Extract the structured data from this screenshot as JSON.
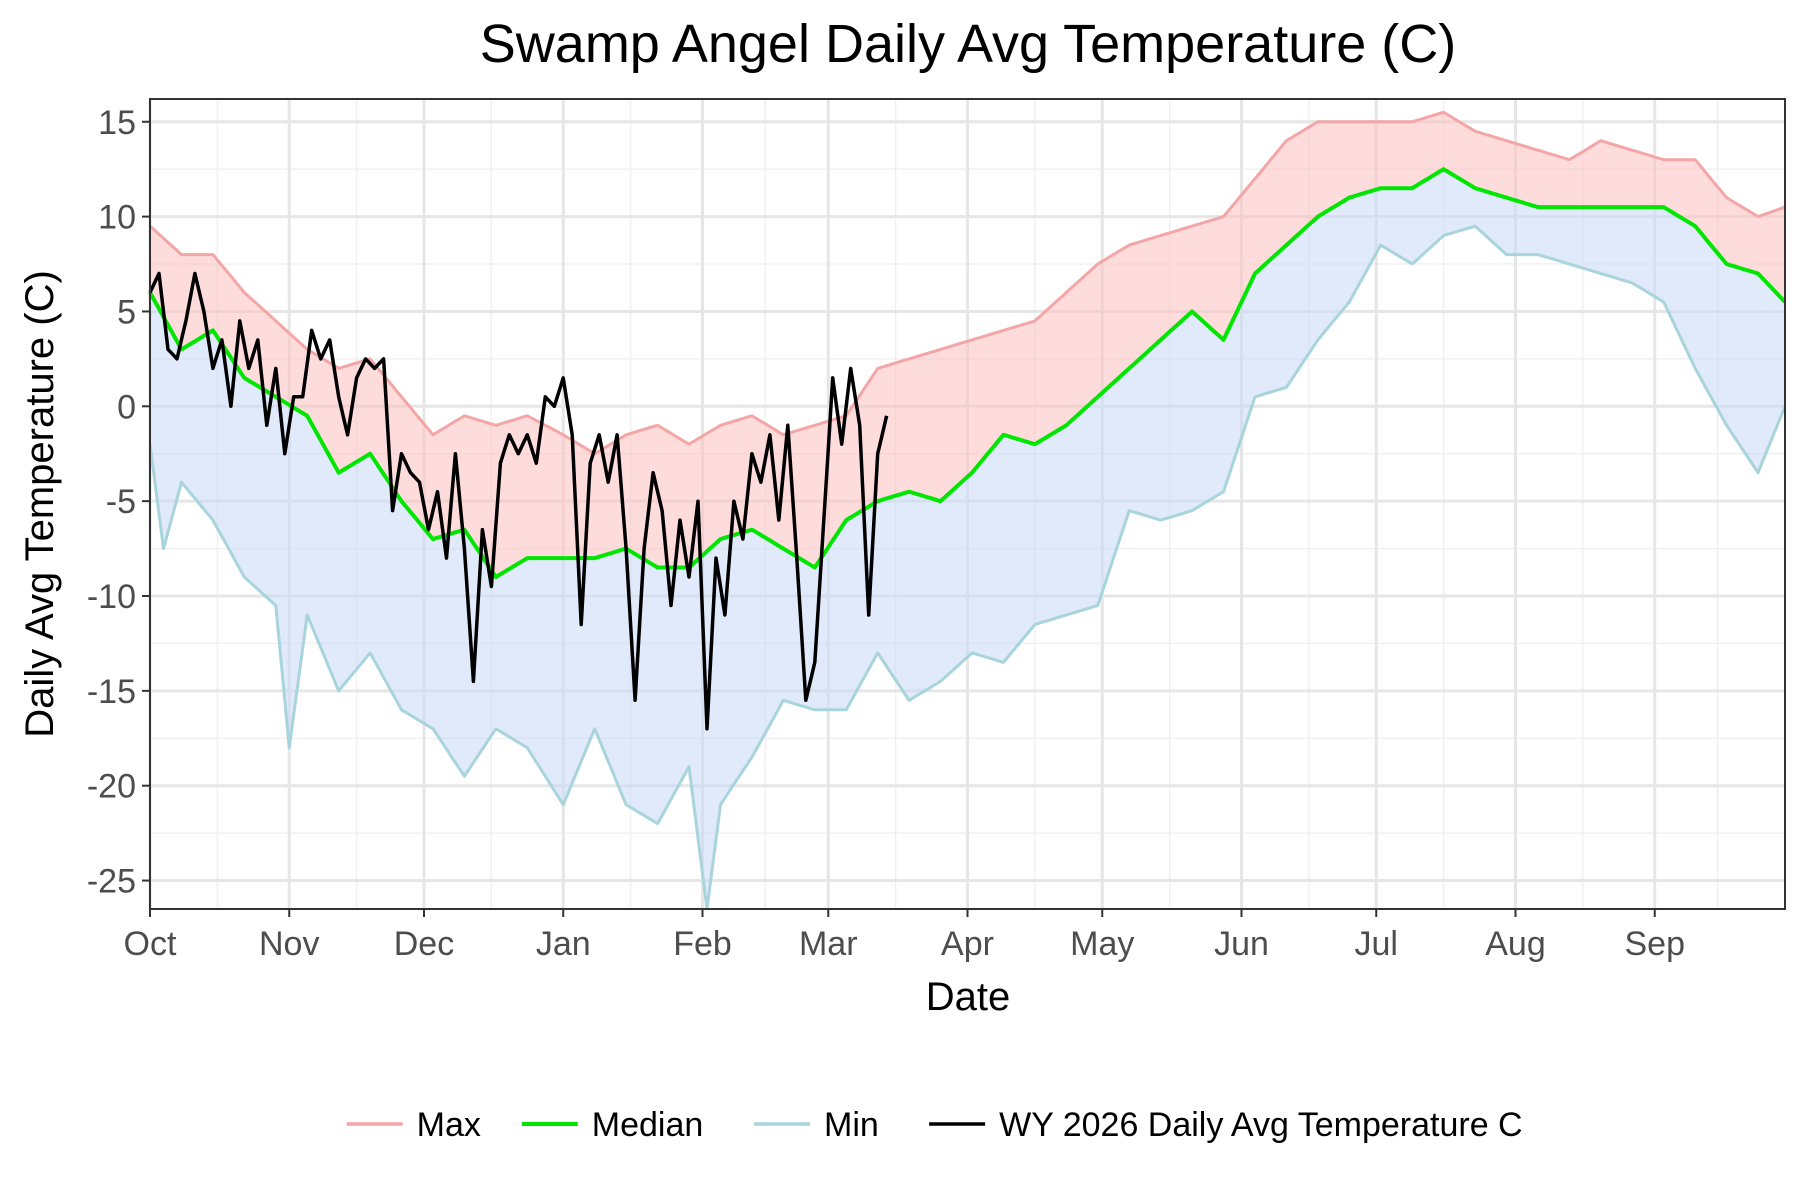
{
  "chart_data": {
    "type": "line",
    "title": "Swamp Angel Daily Avg Temperature (C)",
    "xlabel": "Date",
    "ylabel": "Daily Avg Temperature (C)",
    "x_axis": {
      "type": "date",
      "range": [
        "2025-10-01",
        "2026-09-30"
      ],
      "ticks": [
        {
          "date": "2025-10-01",
          "label": "Oct"
        },
        {
          "date": "2025-11-01",
          "label": "Nov"
        },
        {
          "date": "2025-12-01",
          "label": "Dec"
        },
        {
          "date": "2026-01-01",
          "label": "Jan"
        },
        {
          "date": "2026-02-01",
          "label": "Feb"
        },
        {
          "date": "2026-03-01",
          "label": "Mar"
        },
        {
          "date": "2026-04-01",
          "label": "Apr"
        },
        {
          "date": "2026-05-01",
          "label": "May"
        },
        {
          "date": "2026-06-01",
          "label": "Jun"
        },
        {
          "date": "2026-07-01",
          "label": "Jul"
        },
        {
          "date": "2026-08-01",
          "label": "Aug"
        },
        {
          "date": "2026-09-01",
          "label": "Sep"
        }
      ]
    },
    "ylim": [
      -26.5,
      16.2
    ],
    "y_ticks": [
      {
        "value": 15,
        "label": "15"
      },
      {
        "value": 10,
        "label": "10"
      },
      {
        "value": 5,
        "label": "5"
      },
      {
        "value": 0,
        "label": "0"
      },
      {
        "value": -5,
        "label": "-5"
      },
      {
        "value": -10,
        "label": "-10"
      },
      {
        "value": -15,
        "label": "-15"
      },
      {
        "value": -20,
        "label": "-20"
      },
      {
        "value": -25,
        "label": "-25"
      }
    ],
    "grid": true,
    "legend_position": "bottom",
    "bands": [
      {
        "between": [
          "Max",
          "Median"
        ],
        "color": "#ffc0c0",
        "description": "shaded band from max to median"
      },
      {
        "between": [
          "Median",
          "Min"
        ],
        "color": "#c8d8f8",
        "description": "shaded band from median to min"
      }
    ],
    "series": [
      {
        "name": "Max",
        "color": "#f4a6a6",
        "points": [
          [
            "2025-10-01",
            9.5
          ],
          [
            "2025-10-08",
            8.0
          ],
          [
            "2025-10-15",
            8.0
          ],
          [
            "2025-10-22",
            6.0
          ],
          [
            "2025-10-29",
            4.5
          ],
          [
            "2025-11-05",
            3.0
          ],
          [
            "2025-11-12",
            2.0
          ],
          [
            "2025-11-19",
            2.5
          ],
          [
            "2025-11-26",
            0.5
          ],
          [
            "2025-12-03",
            -1.5
          ],
          [
            "2025-12-10",
            -0.5
          ],
          [
            "2025-12-17",
            -1.0
          ],
          [
            "2025-12-24",
            -0.5
          ],
          [
            "2026-01-01",
            -1.5
          ],
          [
            "2026-01-08",
            -2.5
          ],
          [
            "2026-01-15",
            -1.5
          ],
          [
            "2026-01-22",
            -1.0
          ],
          [
            "2026-01-29",
            -2.0
          ],
          [
            "2026-02-05",
            -1.0
          ],
          [
            "2026-02-12",
            -0.5
          ],
          [
            "2026-02-19",
            -1.5
          ],
          [
            "2026-02-26",
            -1.0
          ],
          [
            "2026-03-05",
            -0.5
          ],
          [
            "2026-03-12",
            2.0
          ],
          [
            "2026-03-19",
            2.5
          ],
          [
            "2026-03-26",
            3.0
          ],
          [
            "2026-04-02",
            3.5
          ],
          [
            "2026-04-09",
            4.0
          ],
          [
            "2026-04-16",
            4.5
          ],
          [
            "2026-04-23",
            6.0
          ],
          [
            "2026-04-30",
            7.5
          ],
          [
            "2026-05-07",
            8.5
          ],
          [
            "2026-05-14",
            9.0
          ],
          [
            "2026-05-21",
            9.5
          ],
          [
            "2026-05-28",
            10.0
          ],
          [
            "2026-06-04",
            12.0
          ],
          [
            "2026-06-11",
            14.0
          ],
          [
            "2026-06-18",
            15.0
          ],
          [
            "2026-06-25",
            15.0
          ],
          [
            "2026-07-02",
            15.0
          ],
          [
            "2026-07-09",
            15.0
          ],
          [
            "2026-07-16",
            15.5
          ],
          [
            "2026-07-23",
            14.5
          ],
          [
            "2026-07-30",
            14.0
          ],
          [
            "2026-08-06",
            13.5
          ],
          [
            "2026-08-13",
            13.0
          ],
          [
            "2026-08-20",
            14.0
          ],
          [
            "2026-08-27",
            13.5
          ],
          [
            "2026-09-03",
            13.0
          ],
          [
            "2026-09-10",
            13.0
          ],
          [
            "2026-09-17",
            11.0
          ],
          [
            "2026-09-24",
            10.0
          ],
          [
            "2026-09-30",
            10.5
          ]
        ]
      },
      {
        "name": "Median",
        "color": "#00e600",
        "points": [
          [
            "2025-10-01",
            6.0
          ],
          [
            "2025-10-08",
            3.0
          ],
          [
            "2025-10-15",
            4.0
          ],
          [
            "2025-10-22",
            1.5
          ],
          [
            "2025-10-29",
            0.5
          ],
          [
            "2025-11-05",
            -0.5
          ],
          [
            "2025-11-12",
            -3.5
          ],
          [
            "2025-11-19",
            -2.5
          ],
          [
            "2025-11-26",
            -5.0
          ],
          [
            "2025-12-03",
            -7.0
          ],
          [
            "2025-12-10",
            -6.5
          ],
          [
            "2025-12-17",
            -9.0
          ],
          [
            "2025-12-24",
            -8.0
          ],
          [
            "2026-01-01",
            -8.0
          ],
          [
            "2026-01-08",
            -8.0
          ],
          [
            "2026-01-15",
            -7.5
          ],
          [
            "2026-01-22",
            -8.5
          ],
          [
            "2026-01-29",
            -8.5
          ],
          [
            "2026-02-05",
            -7.0
          ],
          [
            "2026-02-12",
            -6.5
          ],
          [
            "2026-02-19",
            -7.5
          ],
          [
            "2026-02-26",
            -8.5
          ],
          [
            "2026-03-05",
            -6.0
          ],
          [
            "2026-03-12",
            -5.0
          ],
          [
            "2026-03-19",
            -4.5
          ],
          [
            "2026-03-26",
            -5.0
          ],
          [
            "2026-04-02",
            -3.5
          ],
          [
            "2026-04-09",
            -1.5
          ],
          [
            "2026-04-16",
            -2.0
          ],
          [
            "2026-04-23",
            -1.0
          ],
          [
            "2026-04-30",
            0.5
          ],
          [
            "2026-05-07",
            2.0
          ],
          [
            "2026-05-14",
            3.5
          ],
          [
            "2026-05-21",
            5.0
          ],
          [
            "2026-05-28",
            3.5
          ],
          [
            "2026-06-04",
            7.0
          ],
          [
            "2026-06-11",
            8.5
          ],
          [
            "2026-06-18",
            10.0
          ],
          [
            "2026-06-25",
            11.0
          ],
          [
            "2026-07-02",
            11.5
          ],
          [
            "2026-07-09",
            11.5
          ],
          [
            "2026-07-16",
            12.5
          ],
          [
            "2026-07-23",
            11.5
          ],
          [
            "2026-07-30",
            11.0
          ],
          [
            "2026-08-06",
            10.5
          ],
          [
            "2026-08-13",
            10.5
          ],
          [
            "2026-08-20",
            10.5
          ],
          [
            "2026-08-27",
            10.5
          ],
          [
            "2026-09-03",
            10.5
          ],
          [
            "2026-09-10",
            9.5
          ],
          [
            "2026-09-17",
            7.5
          ],
          [
            "2026-09-24",
            7.0
          ],
          [
            "2026-09-30",
            5.5
          ]
        ]
      },
      {
        "name": "Min",
        "color": "#a8d4dc",
        "points": [
          [
            "2025-10-01",
            -2.0
          ],
          [
            "2025-10-04",
            -7.5
          ],
          [
            "2025-10-08",
            -4.0
          ],
          [
            "2025-10-15",
            -6.0
          ],
          [
            "2025-10-22",
            -9.0
          ],
          [
            "2025-10-29",
            -10.5
          ],
          [
            "2025-11-01",
            -18.0
          ],
          [
            "2025-11-05",
            -11.0
          ],
          [
            "2025-11-12",
            -15.0
          ],
          [
            "2025-11-19",
            -13.0
          ],
          [
            "2025-11-26",
            -16.0
          ],
          [
            "2025-12-03",
            -17.0
          ],
          [
            "2025-12-10",
            -19.5
          ],
          [
            "2025-12-17",
            -17.0
          ],
          [
            "2025-12-24",
            -18.0
          ],
          [
            "2026-01-01",
            -21.0
          ],
          [
            "2026-01-08",
            -17.0
          ],
          [
            "2026-01-15",
            -21.0
          ],
          [
            "2026-01-22",
            -22.0
          ],
          [
            "2026-01-29",
            -19.0
          ],
          [
            "2026-02-02",
            -26.5
          ],
          [
            "2026-02-05",
            -21.0
          ],
          [
            "2026-02-12",
            -18.5
          ],
          [
            "2026-02-19",
            -15.5
          ],
          [
            "2026-02-26",
            -16.0
          ],
          [
            "2026-03-05",
            -16.0
          ],
          [
            "2026-03-12",
            -13.0
          ],
          [
            "2026-03-19",
            -15.5
          ],
          [
            "2026-03-26",
            -14.5
          ],
          [
            "2026-04-02",
            -13.0
          ],
          [
            "2026-04-09",
            -13.5
          ],
          [
            "2026-04-16",
            -11.5
          ],
          [
            "2026-04-23",
            -11.0
          ],
          [
            "2026-04-30",
            -10.5
          ],
          [
            "2026-05-07",
            -5.5
          ],
          [
            "2026-05-14",
            -6.0
          ],
          [
            "2026-05-21",
            -5.5
          ],
          [
            "2026-05-28",
            -4.5
          ],
          [
            "2026-06-04",
            0.5
          ],
          [
            "2026-06-11",
            1.0
          ],
          [
            "2026-06-18",
            3.5
          ],
          [
            "2026-06-25",
            5.5
          ],
          [
            "2026-07-02",
            8.5
          ],
          [
            "2026-07-09",
            7.5
          ],
          [
            "2026-07-16",
            9.0
          ],
          [
            "2026-07-23",
            9.5
          ],
          [
            "2026-07-30",
            8.0
          ],
          [
            "2026-08-06",
            8.0
          ],
          [
            "2026-08-13",
            7.5
          ],
          [
            "2026-08-20",
            7.0
          ],
          [
            "2026-08-27",
            6.5
          ],
          [
            "2026-09-03",
            5.5
          ],
          [
            "2026-09-10",
            2.0
          ],
          [
            "2026-09-17",
            -1.0
          ],
          [
            "2026-09-24",
            -3.5
          ],
          [
            "2026-09-30",
            0.0
          ]
        ]
      },
      {
        "name": "WY 2026 Daily Avg Temperature C",
        "color": "#000000",
        "points": [
          [
            "2025-10-01",
            6.0
          ],
          [
            "2025-10-03",
            7.0
          ],
          [
            "2025-10-05",
            3.0
          ],
          [
            "2025-10-07",
            2.5
          ],
          [
            "2025-10-09",
            4.5
          ],
          [
            "2025-10-11",
            7.0
          ],
          [
            "2025-10-13",
            5.0
          ],
          [
            "2025-10-15",
            2.0
          ],
          [
            "2025-10-17",
            3.5
          ],
          [
            "2025-10-19",
            0.0
          ],
          [
            "2025-10-21",
            4.5
          ],
          [
            "2025-10-23",
            2.0
          ],
          [
            "2025-10-25",
            3.5
          ],
          [
            "2025-10-27",
            -1.0
          ],
          [
            "2025-10-29",
            2.0
          ],
          [
            "2025-10-31",
            -2.5
          ],
          [
            "2025-11-02",
            0.5
          ],
          [
            "2025-11-04",
            0.5
          ],
          [
            "2025-11-06",
            4.0
          ],
          [
            "2025-11-08",
            2.5
          ],
          [
            "2025-11-10",
            3.5
          ],
          [
            "2025-11-12",
            0.5
          ],
          [
            "2025-11-14",
            -1.5
          ],
          [
            "2025-11-16",
            1.5
          ],
          [
            "2025-11-18",
            2.5
          ],
          [
            "2025-11-20",
            2.0
          ],
          [
            "2025-11-22",
            2.5
          ],
          [
            "2025-11-24",
            -5.5
          ],
          [
            "2025-11-26",
            -2.5
          ],
          [
            "2025-11-28",
            -3.5
          ],
          [
            "2025-11-30",
            -4.0
          ],
          [
            "2025-12-02",
            -6.5
          ],
          [
            "2025-12-04",
            -4.5
          ],
          [
            "2025-12-06",
            -8.0
          ],
          [
            "2025-12-08",
            -2.5
          ],
          [
            "2025-12-10",
            -7.5
          ],
          [
            "2025-12-12",
            -14.5
          ],
          [
            "2025-12-14",
            -6.5
          ],
          [
            "2025-12-16",
            -9.5
          ],
          [
            "2025-12-18",
            -3.0
          ],
          [
            "2025-12-20",
            -1.5
          ],
          [
            "2025-12-22",
            -2.5
          ],
          [
            "2025-12-24",
            -1.5
          ],
          [
            "2025-12-26",
            -3.0
          ],
          [
            "2025-12-28",
            0.5
          ],
          [
            "2025-12-30",
            0.0
          ],
          [
            "2026-01-01",
            1.5
          ],
          [
            "2026-01-03",
            -1.5
          ],
          [
            "2026-01-05",
            -11.5
          ],
          [
            "2026-01-07",
            -3.0
          ],
          [
            "2026-01-09",
            -1.5
          ],
          [
            "2026-01-11",
            -4.0
          ],
          [
            "2026-01-13",
            -1.5
          ],
          [
            "2026-01-15",
            -7.5
          ],
          [
            "2026-01-17",
            -15.5
          ],
          [
            "2026-01-19",
            -7.5
          ],
          [
            "2026-01-21",
            -3.5
          ],
          [
            "2026-01-23",
            -5.5
          ],
          [
            "2026-01-25",
            -10.5
          ],
          [
            "2026-01-27",
            -6.0
          ],
          [
            "2026-01-29",
            -9.0
          ],
          [
            "2026-01-31",
            -5.0
          ],
          [
            "2026-02-02",
            -17.0
          ],
          [
            "2026-02-04",
            -8.0
          ],
          [
            "2026-02-06",
            -11.0
          ],
          [
            "2026-02-08",
            -5.0
          ],
          [
            "2026-02-10",
            -7.0
          ],
          [
            "2026-02-12",
            -2.5
          ],
          [
            "2026-02-14",
            -4.0
          ],
          [
            "2026-02-16",
            -1.5
          ],
          [
            "2026-02-18",
            -6.0
          ],
          [
            "2026-02-20",
            -1.0
          ],
          [
            "2026-02-22",
            -8.0
          ],
          [
            "2026-02-24",
            -15.5
          ],
          [
            "2026-02-26",
            -13.5
          ],
          [
            "2026-02-28",
            -6.0
          ],
          [
            "2026-03-02",
            1.5
          ],
          [
            "2026-03-04",
            -2.0
          ],
          [
            "2026-03-06",
            2.0
          ],
          [
            "2026-03-08",
            -1.0
          ],
          [
            "2026-03-10",
            -11.0
          ],
          [
            "2026-03-12",
            -2.5
          ],
          [
            "2026-03-14",
            -0.5
          ]
        ]
      }
    ]
  }
}
